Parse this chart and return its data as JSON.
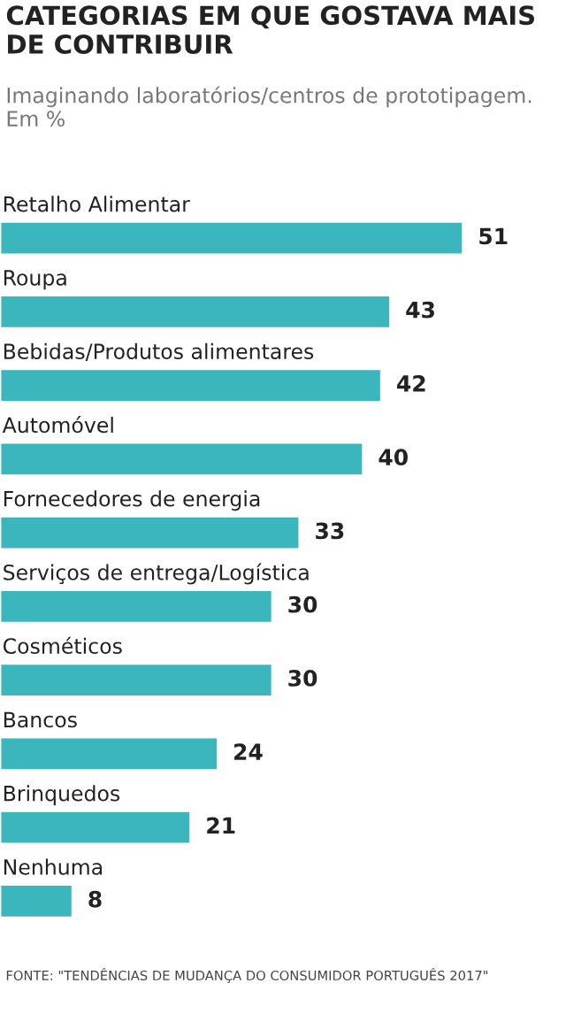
{
  "chart_data": {
    "type": "bar",
    "orientation": "horizontal",
    "title": "CATEGORIAS EM QUE GOSTAVA MAIS\nDE CONTRIBUIR",
    "subtitle": "Imaginando laboratórios/centros de prototipagem.\nEm %",
    "categories": [
      "Retalho Alimentar",
      "Roupa",
      "Bebidas/Produtos alimentares",
      "Automóvel",
      "Fornecedores de energia",
      "Serviços de entrega/Logística",
      "Cosméticos",
      "Bancos",
      "Brinquedos",
      "Nenhuma"
    ],
    "values": [
      51,
      43,
      42,
      40,
      33,
      30,
      30,
      24,
      21,
      8
    ],
    "color": "#3cb6bd",
    "data_labels": true,
    "annotations": [
      "FONTE: \"TENDÊNCIAS DE MUDANÇA DO CONSUMIDOR PORTUGUÊS 2017\""
    ]
  }
}
